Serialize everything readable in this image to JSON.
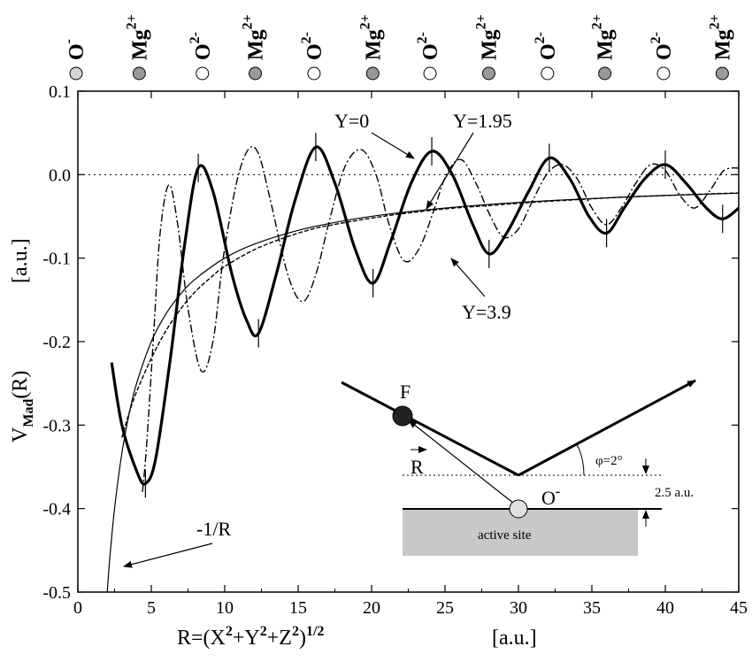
{
  "chart_data": {
    "type": "line",
    "title": "",
    "xlabel": "R=(X²+Y²+Z²)^1/2   [a.u.]",
    "xlabel_parts": {
      "main": "R=(X",
      "sup1": "2",
      "plus1": "+Y",
      "sup2": "2",
      "plus2": "+Z",
      "sup3": "2",
      "close": ")",
      "sup4": "1/2",
      "unit": "[a.u.]"
    },
    "ylabel": "V_Mad(R)   [a.u.]",
    "ylabel_parts": {
      "main": "V",
      "sub": "Mad",
      "rest": "(R)",
      "unit": "[a.u.]"
    },
    "xlim": [
      0,
      45
    ],
    "ylim": [
      -0.5,
      0.1
    ],
    "xticks": [
      0,
      5,
      10,
      15,
      20,
      25,
      30,
      35,
      40,
      45
    ],
    "yticks": [
      -0.5,
      -0.4,
      -0.3,
      -0.2,
      -0.1,
      0.0,
      0.1
    ],
    "ytick_labels": [
      "-0.5",
      "-0.4",
      "-0.3",
      "-0.2",
      "-0.1",
      "0.0",
      "0.1"
    ],
    "xtick_labels": [
      "0",
      "5",
      "10",
      "15",
      "20",
      "25",
      "30",
      "35",
      "40",
      "45"
    ],
    "zero_line": 0.0,
    "grid": false,
    "series": [
      {
        "name": "Y=0",
        "style": "solid-thick",
        "x": [
          2.3,
          3.0,
          4.0,
          4.6,
          5.3,
          6.3,
          7.3,
          8.2,
          9.2,
          10.5,
          11.5,
          12.3,
          13.5,
          14.8,
          16.2,
          17.5,
          18.9,
          20.1,
          21.3,
          22.7,
          24.1,
          25.5,
          26.9,
          28.0,
          29.2,
          30.7,
          32.1,
          33.5,
          34.8,
          36.0,
          37.2,
          38.6,
          40.0,
          41.4,
          42.8,
          43.9,
          45.0
        ],
        "y": [
          -0.225,
          -0.3,
          -0.355,
          -0.37,
          -0.34,
          -0.22,
          -0.08,
          0.008,
          -0.02,
          -0.12,
          -0.175,
          -0.19,
          -0.12,
          -0.03,
          0.033,
          -0.01,
          -0.09,
          -0.13,
          -0.08,
          -0.01,
          0.028,
          0.0,
          -0.06,
          -0.095,
          -0.07,
          -0.02,
          0.02,
          -0.005,
          -0.05,
          -0.07,
          -0.04,
          -0.005,
          0.012,
          -0.01,
          -0.04,
          -0.053,
          -0.04
        ]
      },
      {
        "name": "Y=1.95",
        "style": "dashed-thin",
        "x": [
          3.0,
          3.5,
          4.0,
          5.0,
          6.0,
          7.0,
          8.0,
          9.0,
          10.0,
          12.0,
          14.0,
          16.0,
          18.0,
          20.0,
          22.0,
          25.0,
          28.0,
          31.0,
          34.0,
          37.0,
          40.0,
          43.0,
          45.0
        ],
        "y": [
          -0.315,
          -0.285,
          -0.26,
          -0.22,
          -0.187,
          -0.161,
          -0.14,
          -0.124,
          -0.11,
          -0.09,
          -0.076,
          -0.065,
          -0.058,
          -0.052,
          -0.047,
          -0.041,
          -0.037,
          -0.033,
          -0.03,
          -0.027,
          -0.025,
          -0.023,
          -0.022
        ]
      },
      {
        "name": "Y=3.9",
        "style": "dashdot",
        "x": [
          4.4,
          4.7,
          5.2,
          5.6,
          6.2,
          6.8,
          7.5,
          8.4,
          9.2,
          9.9,
          10.8,
          11.6,
          12.3,
          13.1,
          14.3,
          15.3,
          16.2,
          17.2,
          18.2,
          19.3,
          20.3,
          21.2,
          22.2,
          23.2,
          24.2,
          25.1,
          26.1,
          27.1,
          28.1,
          29.0,
          30.0,
          31.0,
          32.0,
          33.0,
          34.0,
          35.0,
          36.0,
          37.0,
          38.0,
          39.0,
          40.0,
          41.0,
          42.0,
          43.0,
          44.0,
          45.0
        ],
        "y": [
          -0.38,
          -0.32,
          -0.18,
          -0.07,
          -0.012,
          -0.06,
          -0.16,
          -0.235,
          -0.2,
          -0.1,
          -0.01,
          0.03,
          0.025,
          -0.03,
          -0.12,
          -0.152,
          -0.12,
          -0.05,
          0.01,
          0.03,
          0.0,
          -0.06,
          -0.103,
          -0.09,
          -0.045,
          0.0,
          0.018,
          -0.01,
          -0.05,
          -0.075,
          -0.065,
          -0.03,
          0.002,
          0.012,
          -0.005,
          -0.04,
          -0.06,
          -0.04,
          -0.01,
          0.012,
          0.005,
          -0.025,
          -0.04,
          -0.02,
          0.005,
          0.008
        ]
      },
      {
        "name": "-1/R",
        "style": "solid-thin",
        "x": [
          2.0,
          2.2,
          2.5,
          3.0,
          3.5,
          4.0,
          5.0,
          6.0,
          7.0,
          8.0,
          10.0,
          12.0,
          15.0,
          18.0,
          21.0,
          25.0,
          30.0,
          35.0,
          40.0,
          45.0
        ],
        "y": [
          -0.5,
          -0.4545,
          -0.4,
          -0.3333,
          -0.2857,
          -0.25,
          -0.2,
          -0.1667,
          -0.1429,
          -0.125,
          -0.1,
          -0.0833,
          -0.0667,
          -0.0556,
          -0.0476,
          -0.04,
          -0.0333,
          -0.0286,
          -0.025,
          -0.0222
        ]
      }
    ],
    "tick_marks_on_y0": [
      4.6,
      8.2,
      12.3,
      16.2,
      20.1,
      24.1,
      28.0,
      32.1,
      36.0,
      40.0,
      43.9
    ],
    "annotations": [
      {
        "text": "Y=0",
        "target_x": 22.8,
        "target_y": 0.02
      },
      {
        "text": "Y=1.95",
        "target_x": 23.5,
        "target_y": -0.04
      },
      {
        "text": "Y=3.9",
        "target_x": 25.5,
        "target_y": -0.11
      },
      {
        "text": "-1/R",
        "target_x": 2.8,
        "target_y": -0.47
      }
    ],
    "ion_labels": [
      {
        "x": 0.0,
        "ion": "O",
        "charge": "-",
        "fill": "#d4d4d4"
      },
      {
        "x": 4.3,
        "ion": "Mg",
        "charge": "2+",
        "fill": "#9a9a9a"
      },
      {
        "x": 8.6,
        "ion": "O",
        "charge": "2-",
        "fill": "#ffffff"
      },
      {
        "x": 12.2,
        "ion": "Mg",
        "charge": "2+",
        "fill": "#9a9a9a"
      },
      {
        "x": 16.2,
        "ion": "O",
        "charge": "2-",
        "fill": "#ffffff"
      },
      {
        "x": 20.2,
        "ion": "Mg",
        "charge": "2+",
        "fill": "#9a9a9a"
      },
      {
        "x": 24.1,
        "ion": "O",
        "charge": "2-",
        "fill": "#ffffff"
      },
      {
        "x": 28.1,
        "ion": "Mg",
        "charge": "2+",
        "fill": "#9a9a9a"
      },
      {
        "x": 32.1,
        "ion": "O",
        "charge": "2-",
        "fill": "#ffffff"
      },
      {
        "x": 36.0,
        "ion": "Mg",
        "charge": "2+",
        "fill": "#9a9a9a"
      },
      {
        "x": 40.0,
        "ion": "O",
        "charge": "2-",
        "fill": "#ffffff"
      },
      {
        "x": 44.0,
        "ion": "Mg",
        "charge": "2+",
        "fill": "#9a9a9a"
      }
    ],
    "inset": {
      "atom_label": "F",
      "vector_label": "R",
      "angle_label": "φ=2°",
      "height_label": "2.5 a.u.",
      "site_ion": "O",
      "site_charge": "-",
      "site_label": "active site"
    }
  }
}
